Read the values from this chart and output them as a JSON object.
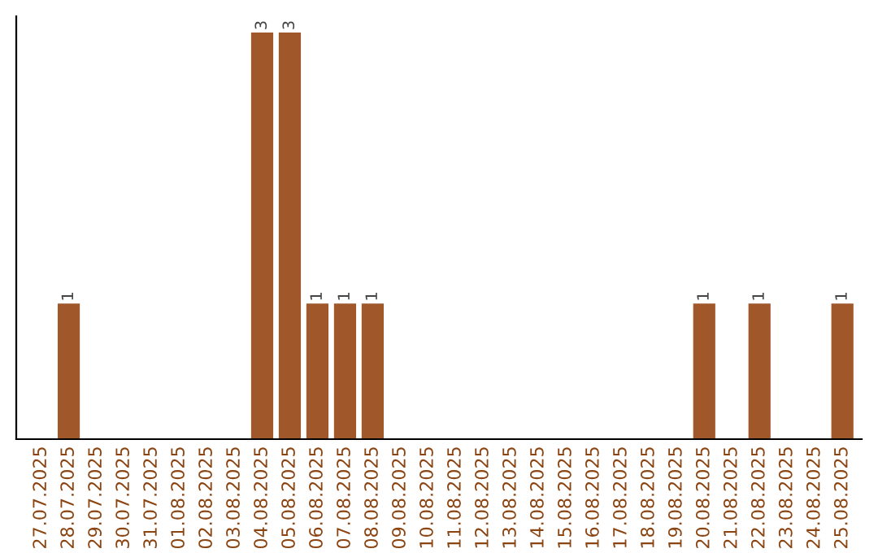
{
  "chart_data": {
    "type": "bar",
    "categories": [
      "27.07.2025",
      "28.07.2025",
      "29.07.2025",
      "30.07.2025",
      "31.07.2025",
      "01.08.2025",
      "02.08.2025",
      "03.08.2025",
      "04.08.2025",
      "05.08.2025",
      "06.08.2025",
      "07.08.2025",
      "08.08.2025",
      "09.08.2025",
      "10.08.2025",
      "11.08.2025",
      "12.08.2025",
      "13.08.2025",
      "14.08.2025",
      "15.08.2025",
      "16.08.2025",
      "17.08.2025",
      "18.08.2025",
      "19.08.2025",
      "20.08.2025",
      "21.08.2025",
      "22.08.2025",
      "23.08.2025",
      "24.08.2025",
      "25.08.2025"
    ],
    "values": [
      0,
      1,
      0,
      0,
      0,
      0,
      0,
      0,
      3,
      3,
      1,
      1,
      1,
      0,
      0,
      0,
      0,
      0,
      0,
      0,
      0,
      0,
      0,
      0,
      1,
      0,
      1,
      0,
      0,
      1
    ],
    "value_labels": [
      null,
      "1",
      null,
      null,
      null,
      null,
      null,
      null,
      "3",
      "3",
      "1",
      "1",
      "1",
      null,
      null,
      null,
      null,
      null,
      null,
      null,
      null,
      null,
      null,
      null,
      "1",
      null,
      "1",
      null,
      null,
      "1"
    ],
    "color": "#a0582a",
    "relative": false,
    "grid": false,
    "legend": false
  }
}
